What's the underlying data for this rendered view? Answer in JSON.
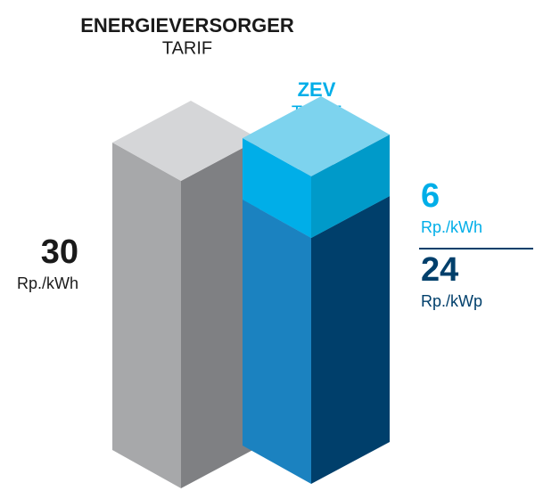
{
  "chart_data": {
    "type": "isometric-bar",
    "bars": [
      {
        "title": "ENERGIEVERSORGER",
        "subtitle": "TARIF",
        "title_color": "#1a1a1a",
        "segments": [
          {
            "value": 30,
            "unit": "Rp./kWh",
            "label_color": "#1a1a1a",
            "front": "#a7a8aa",
            "side": "#7f8083",
            "top": "#d5d6d8"
          }
        ]
      },
      {
        "title": "ZEV",
        "subtitle": "TARIF",
        "title_color": "#00aee8",
        "segments": [
          {
            "value": 24,
            "unit": "Rp./kWp",
            "label_color": "#003f6b",
            "front": "#1b82c0",
            "side": "#003f6b",
            "top": "#1b82c0"
          },
          {
            "value": 6,
            "unit": "Rp./kWh",
            "label_color": "#00aee8",
            "front": "#00aee8",
            "side": "#009ac9",
            "top": "#7dd3ee"
          }
        ]
      }
    ]
  }
}
